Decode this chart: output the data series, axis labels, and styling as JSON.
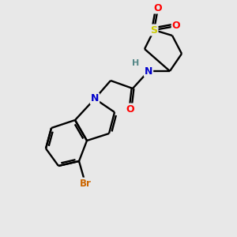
{
  "bg_color": "#e8e8e8",
  "atom_colors": {
    "C": "#000000",
    "N": "#0000cc",
    "O": "#ff0000",
    "S": "#cccc00",
    "Br": "#cc6600",
    "H": "#558888"
  },
  "bond_color": "#000000",
  "figsize": [
    3.0,
    3.0
  ],
  "dpi": 100
}
